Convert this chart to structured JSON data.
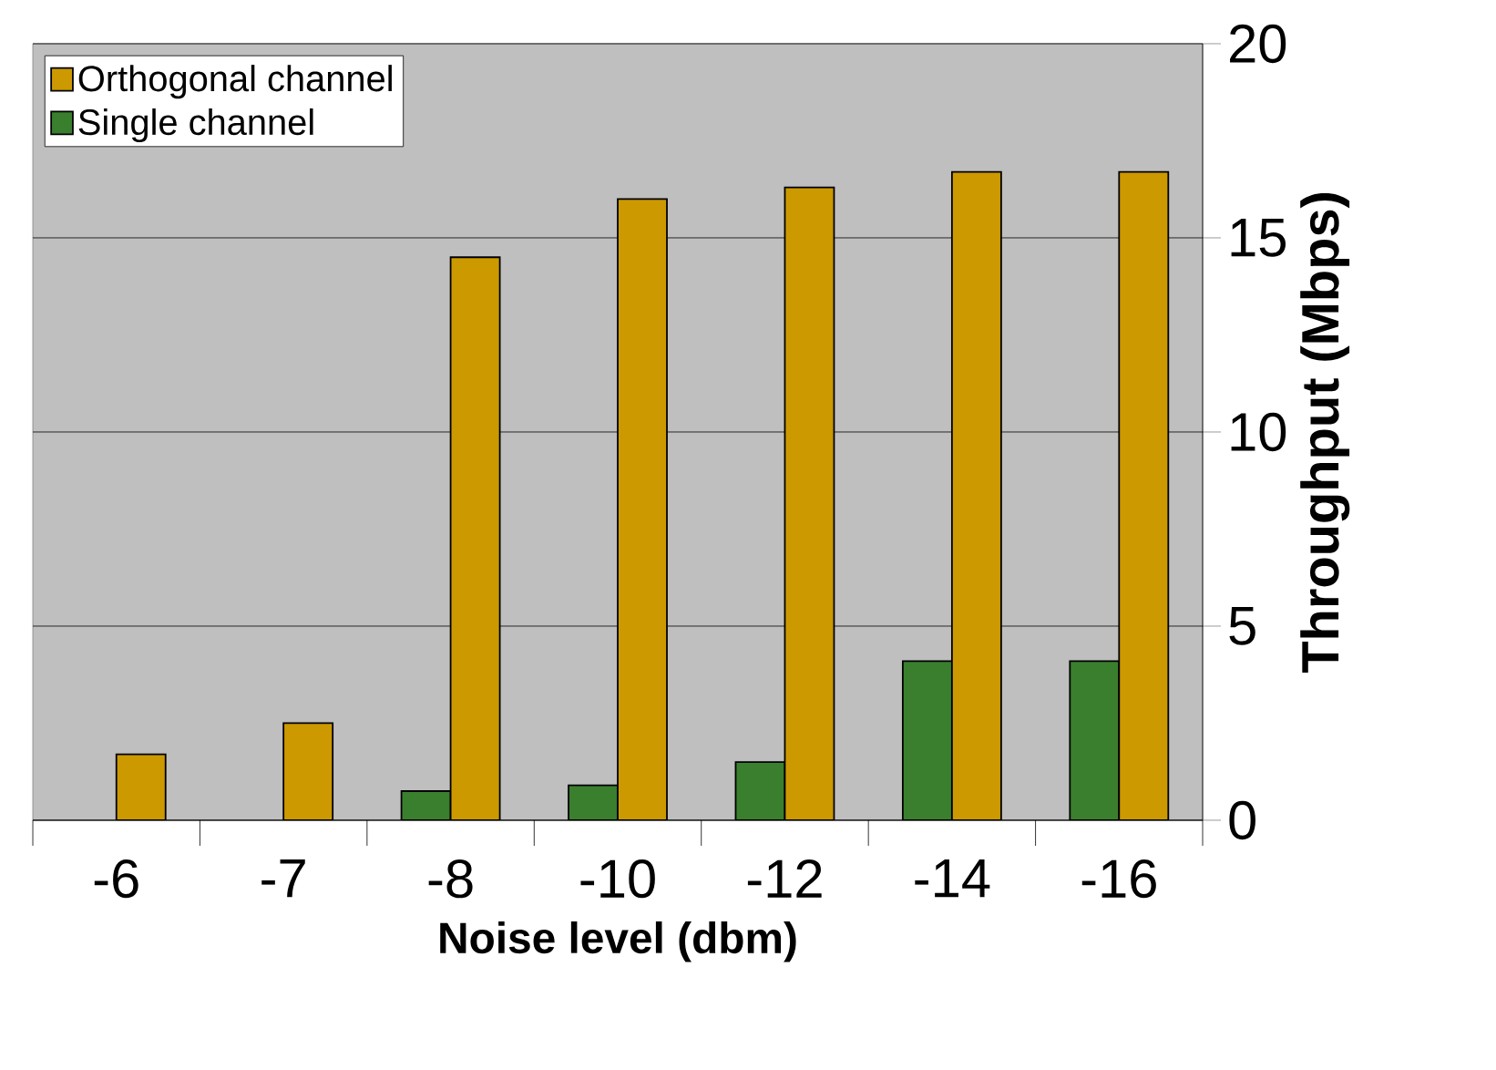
{
  "chart_data": {
    "type": "bar",
    "xlabel": "Noise level (dbm)",
    "ylabel": "Throughput (Mbps)",
    "categories": [
      "-6",
      "-7",
      "-8",
      "-10",
      "-12",
      "-14",
      "-16"
    ],
    "series": [
      {
        "name": "Single channel",
        "color": "#3a7f2e",
        "values": [
          null,
          null,
          0.75,
          0.9,
          1.5,
          4.1,
          4.1
        ]
      },
      {
        "name": "Orthogonal channel",
        "color": "#cc9900",
        "values": [
          1.7,
          2.5,
          14.5,
          16,
          16.3,
          16.7,
          16.7
        ]
      }
    ],
    "ylim": [
      0,
      20
    ],
    "yticks": [
      0,
      5,
      10,
      15,
      20
    ],
    "grid": "y",
    "legend": "top left"
  }
}
